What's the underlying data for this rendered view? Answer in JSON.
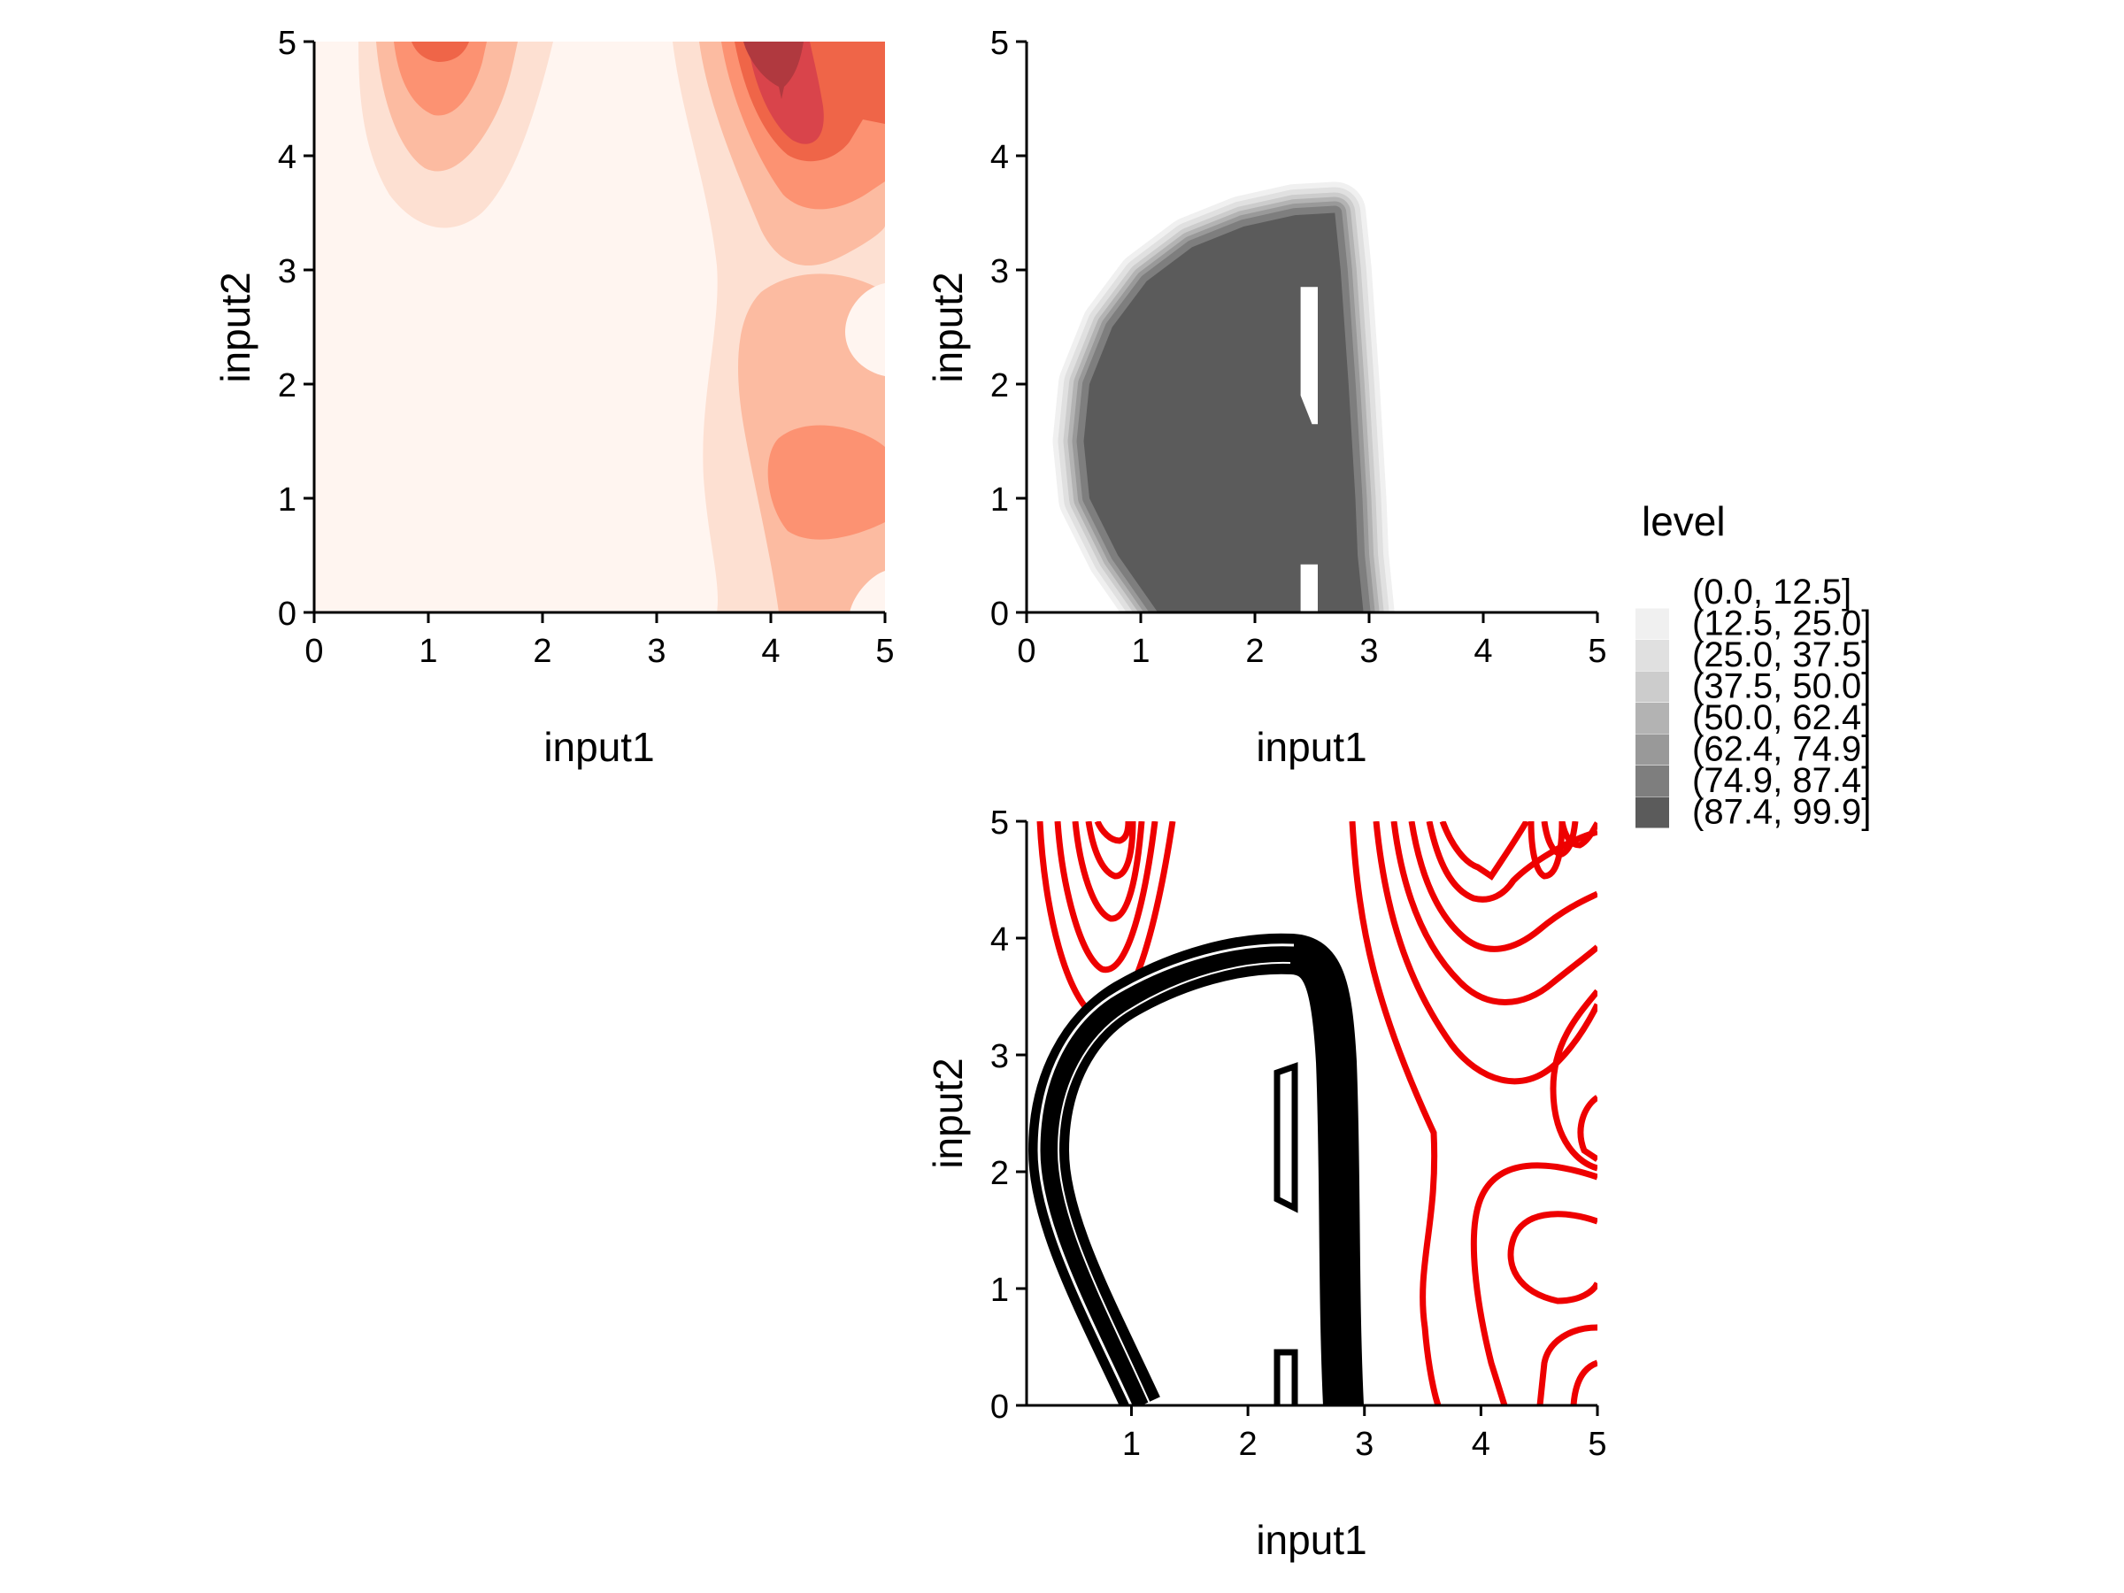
{
  "chart_data": [
    {
      "type": "contour-filled",
      "xlabel": "input1",
      "ylabel": "input2",
      "xlim": [
        0,
        5
      ],
      "ylim": [
        0,
        5
      ],
      "x_ticks": [
        "0",
        "1",
        "2",
        "3",
        "4",
        "5"
      ],
      "y_ticks": [
        "0",
        "1",
        "2",
        "3",
        "4",
        "5"
      ],
      "colors": [
        "#fff5f0",
        "#fde0d2",
        "#fcbba1",
        "#fc9272",
        "#ef6548",
        "#d9444b",
        "#b0393f"
      ],
      "hotspots": [
        {
          "x": 1.0,
          "y": 5.0,
          "level": 3
        },
        {
          "x": 4.1,
          "y": 4.9,
          "level": 6
        },
        {
          "x": 4.5,
          "y": 1.1,
          "level": 2
        }
      ]
    },
    {
      "type": "contour-filled",
      "xlabel": "input1",
      "ylabel": "input2",
      "xlim": [
        0,
        5
      ],
      "ylim": [
        0,
        5
      ],
      "x_ticks": [
        "0",
        "1",
        "2",
        "3",
        "4",
        "5"
      ],
      "y_ticks": [
        "0",
        "1",
        "2",
        "3",
        "4",
        "5"
      ],
      "region": {
        "outline": [
          [
            1.15,
            0
          ],
          [
            0.8,
            0.5
          ],
          [
            0.55,
            1.0
          ],
          [
            0.5,
            1.5
          ],
          [
            0.55,
            2.0
          ],
          [
            0.75,
            2.5
          ],
          [
            1.05,
            2.9
          ],
          [
            1.45,
            3.2
          ],
          [
            1.9,
            3.38
          ],
          [
            2.35,
            3.48
          ],
          [
            2.7,
            3.5
          ],
          [
            2.75,
            3.0
          ],
          [
            2.82,
            2.0
          ],
          [
            2.88,
            1.0
          ],
          [
            2.9,
            0.5
          ],
          [
            2.95,
            0
          ]
        ],
        "holes": [
          [
            [
              2.4,
              1.9
            ],
            [
              2.4,
              2.85
            ],
            [
              2.55,
              2.85
            ],
            [
              2.55,
              1.65
            ],
            [
              2.5,
              1.65
            ]
          ],
          [
            [
              2.4,
              0
            ],
            [
              2.4,
              0.42
            ],
            [
              2.55,
              0.42
            ],
            [
              2.55,
              0
            ]
          ]
        ]
      }
    },
    {
      "type": "contour-lines",
      "xlabel": "input1",
      "ylabel": "input2",
      "xlim": [
        0.1,
        5
      ],
      "ylim": [
        0,
        5
      ],
      "x_ticks": [
        "1",
        "2",
        "3",
        "4",
        "5"
      ],
      "y_ticks": [
        "0",
        "1",
        "2",
        "3",
        "4",
        "5"
      ],
      "series": [
        {
          "color": "#ee0000"
        },
        {
          "color": "#000000"
        }
      ]
    }
  ],
  "legend": {
    "title": "level",
    "entries": [
      {
        "label": "(0.0, 12.5]",
        "color": "#ffffff"
      },
      {
        "label": "(12.5, 25.0]",
        "color": "#f0f0f0"
      },
      {
        "label": "(25.0, 37.5]",
        "color": "#e0e0e0"
      },
      {
        "label": "(37.5, 50.0]",
        "color": "#cccccc"
      },
      {
        "label": "(50.0, 62.4]",
        "color": "#b3b3b3"
      },
      {
        "label": "(62.4, 74.9]",
        "color": "#999999"
      },
      {
        "label": "(74.9, 87.4]",
        "color": "#7e7e7e"
      },
      {
        "label": "(87.4, 99.9]",
        "color": "#5b5b5b"
      }
    ]
  }
}
